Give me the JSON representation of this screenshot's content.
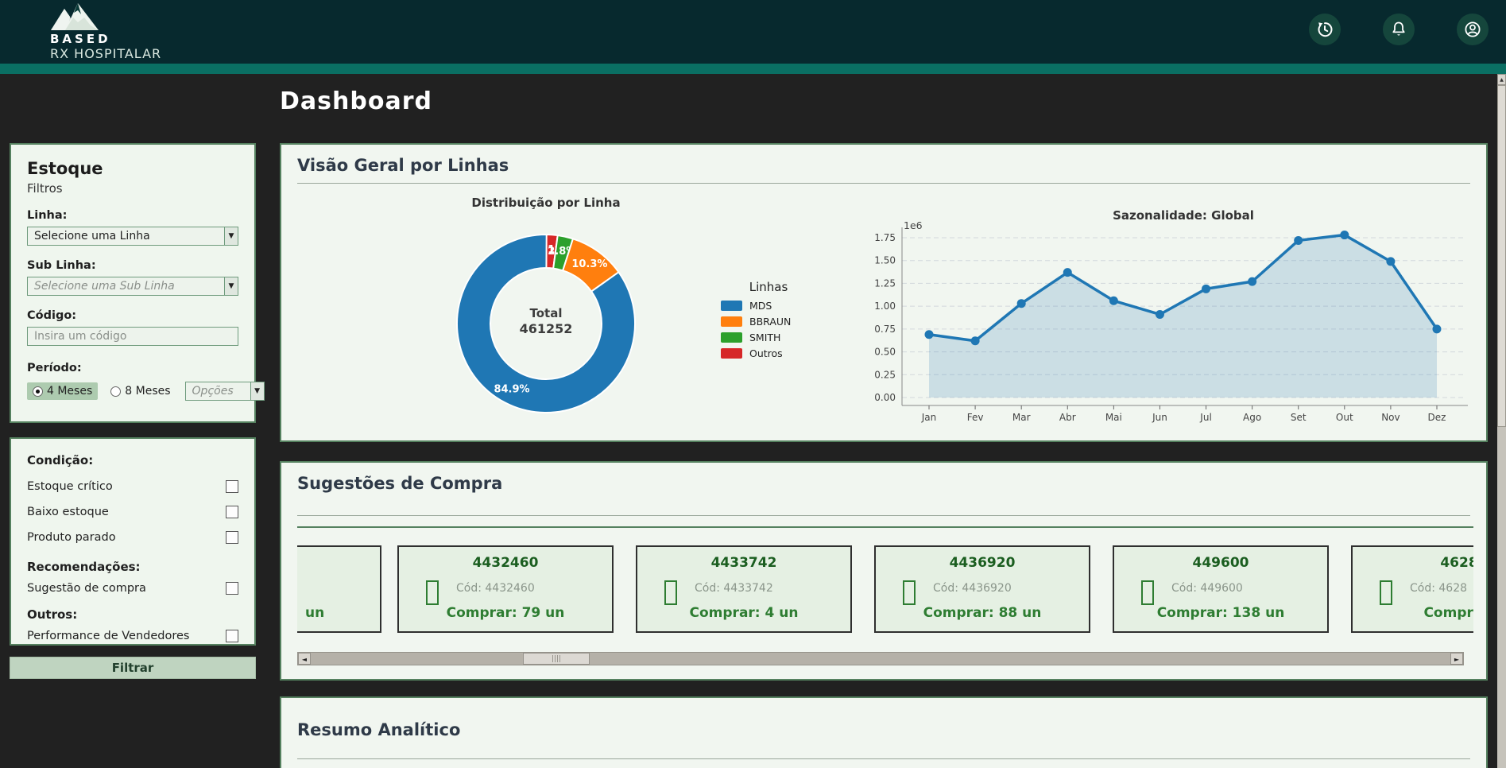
{
  "colors": {
    "header_bg": "#07292e",
    "accent_teal": "#0a6f63",
    "page_bg": "#212121",
    "panel_bg": "#eff6ee",
    "panel_border": "#55815f",
    "card_bg": "#f1f6f0",
    "filter_button_bg": "#bfd4c0",
    "pie_colors": [
      "#1f77b4",
      "#ff7f0e",
      "#2ca02c",
      "#d62728"
    ],
    "line_color": "#1f77b4",
    "suggestion_title": "#1b5e20",
    "suggestion_accent": "#2e7d32"
  },
  "header": {
    "brand_line1": "BASED",
    "brand_line2": "RX HOSPITALAR",
    "icons": [
      "history-icon",
      "notifications-icon",
      "account-icon"
    ]
  },
  "page_title": "Dashboard",
  "sidebar": {
    "title": "Estoque",
    "subtitle": "Filtros",
    "linha_label": "Linha:",
    "linha_value": "Selecione uma Linha",
    "sub_linha_label": "Sub Linha:",
    "sub_linha_placeholder": "Selecione uma Sub Linha",
    "codigo_label": "Código:",
    "codigo_placeholder": "Insira um código",
    "periodo_label": "Período:",
    "periodo_options": [
      {
        "label": "4 Meses",
        "selected": true
      },
      {
        "label": "8 Meses",
        "selected": false
      }
    ],
    "periodo_select_placeholder": "Opções",
    "condicao_label": "Condição:",
    "condicao_items": [
      "Estoque crítico",
      "Baixo estoque",
      "Produto parado"
    ],
    "recomendacoes_label": "Recomendações:",
    "recomendacoes_items": [
      "Sugestão de compra"
    ],
    "outros_label": "Outros:",
    "outros_items": [
      "Performance de Vendedores"
    ],
    "filter_button": "Filtrar"
  },
  "sections": {
    "overview": {
      "title": "Visão Geral por Linhas"
    },
    "suggestions": {
      "title": "Sugestões de Compra",
      "partial_card_text": "un",
      "cards": [
        {
          "title": "4432460",
          "cod": "Cód: 4432460",
          "comprar": "Comprar: 79 un"
        },
        {
          "title": "4433742",
          "cod": "Cód: 4433742",
          "comprar": "Comprar: 4 un"
        },
        {
          "title": "4436920",
          "cod": "Cód: 4436920",
          "comprar": "Comprar: 88 un"
        },
        {
          "title": "449600",
          "cod": "Cód: 449600",
          "comprar": "Comprar: 138 un"
        },
        {
          "title": "4628",
          "cod": "Cód: 4628",
          "comprar": "Comprar:"
        }
      ]
    },
    "resumo": {
      "title": "Resumo Analítico"
    }
  },
  "chart_data": [
    {
      "type": "pie",
      "donut": true,
      "title": "Distribuição por Linha",
      "labels": [
        "MDS",
        "BBRAUN",
        "SMITH",
        "Outros"
      ],
      "values_pct": [
        84.9,
        10.3,
        2.8,
        2.1
      ],
      "colors": [
        "#1f77b4",
        "#ff7f0e",
        "#2ca02c",
        "#d62728"
      ],
      "center_label": "Total",
      "center_value": "461252",
      "legend_title": "Linhas",
      "legend_position": "right"
    },
    {
      "type": "line",
      "title": "Sazonalidade: Global",
      "x": [
        "Jan",
        "Fev",
        "Mar",
        "Abr",
        "Mai",
        "Jun",
        "Jul",
        "Ago",
        "Set",
        "Out",
        "Nov",
        "Dez"
      ],
      "values": [
        690000,
        620000,
        1030000,
        1370000,
        1060000,
        910000,
        1190000,
        1270000,
        1720000,
        1780000,
        1490000,
        750000
      ],
      "y_ticks": [
        "0.00",
        "0.25",
        "0.50",
        "0.75",
        "1.00",
        "1.25",
        "1.50",
        "1.75"
      ],
      "y_multiplier_label": "1e6",
      "ylim": [
        0,
        1850000
      ],
      "grid": true,
      "markers": true,
      "area_fill": true,
      "line_color": "#1f77b4"
    }
  ]
}
